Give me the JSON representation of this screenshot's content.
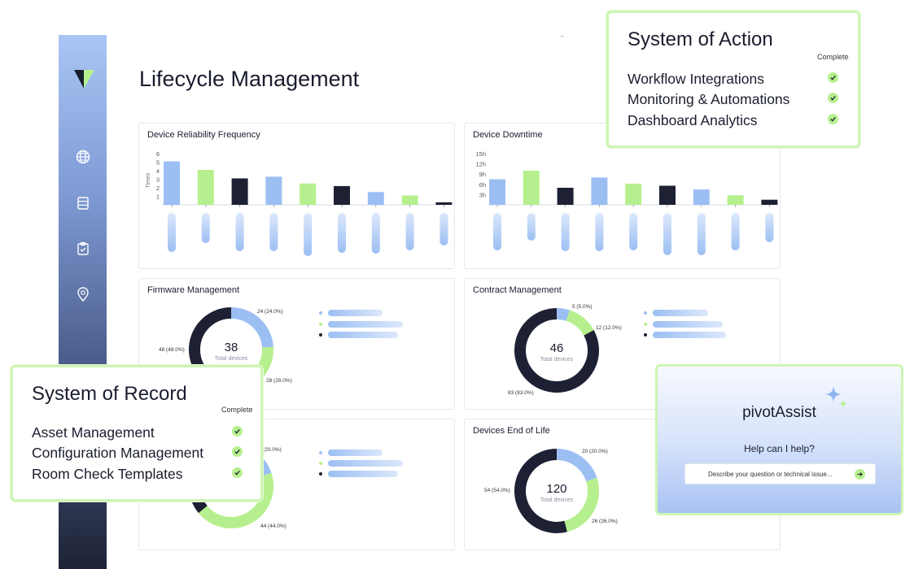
{
  "page": {
    "title": "Lifecycle Management",
    "dots": ".."
  },
  "sidebar": {
    "icons": [
      "logo-icon",
      "globe-icon",
      "database-icon",
      "clipboard-icon",
      "location-pin-icon"
    ]
  },
  "colors": {
    "blue": "#9cbff3",
    "green": "#b6f08e",
    "navy": "#1e2133"
  },
  "cards": {
    "reliability": {
      "title": "Device Reliability Frequency",
      "chart_data": {
        "type": "bar",
        "ylabel": "Times",
        "yticks": [
          "1",
          "2",
          "3",
          "4",
          "5",
          "6"
        ],
        "ylim": [
          0,
          6
        ],
        "values": [
          5.1,
          4.1,
          3.1,
          3.3,
          2.5,
          2.2,
          1.5,
          1.1,
          0.3
        ],
        "colors": [
          "blue",
          "green",
          "navy",
          "blue",
          "green",
          "navy",
          "blue",
          "green",
          "navy"
        ]
      }
    },
    "downtime": {
      "title": "Device Downtime",
      "chart_data": {
        "type": "bar",
        "yticks": [
          "3h",
          "6h",
          "9h",
          "12h",
          "15h"
        ],
        "ylim": [
          0,
          15
        ],
        "values": [
          7.5,
          10,
          5,
          8,
          6.2,
          5.6,
          4.5,
          2.8,
          1.5
        ],
        "colors": [
          "blue",
          "green",
          "navy",
          "blue",
          "green",
          "navy",
          "blue",
          "green",
          "navy"
        ]
      }
    },
    "firmware": {
      "title": "Firmware Management",
      "total": "38",
      "total_label": "Total devices",
      "segments": [
        {
          "label": "24 (24.0%)",
          "value": 24,
          "color": "blue"
        },
        {
          "label": "28 (28.0%)",
          "value": 28,
          "color": "green"
        },
        {
          "label": "48 (48.0%)",
          "value": 48,
          "color": "navy"
        }
      ]
    },
    "contract": {
      "title": "Contract Management",
      "total": "46",
      "total_label": "Total devices",
      "segments": [
        {
          "label": "5 (5.0%)",
          "value": 5,
          "color": "blue"
        },
        {
          "label": "12 (12.0%)",
          "value": 12,
          "color": "green"
        },
        {
          "label": "83 (83.0%)",
          "value": 83,
          "color": "navy"
        }
      ]
    },
    "partial": {
      "segments": [
        {
          "label": "(20.0%)",
          "value": 20,
          "color": "blue"
        },
        {
          "label": "44 (44.0%)",
          "value": 44,
          "color": "green"
        },
        {
          "label": "",
          "value": 36,
          "color": "navy"
        }
      ]
    },
    "end_of_life": {
      "title": "Devices End of Life",
      "total": "120",
      "total_label": "Total devices",
      "segments": [
        {
          "label": "20 (20.0%)",
          "value": 20,
          "color": "blue"
        },
        {
          "label": "26 (26.0%)",
          "value": 26,
          "color": "green"
        },
        {
          "label": "54 (54.0%)",
          "value": 54,
          "color": "navy"
        }
      ]
    }
  },
  "system_of_action": {
    "title": "System of Action",
    "complete_label": "Complete",
    "items": [
      "Workflow Integrations",
      "Monitoring & Automations",
      "Dashboard Analytics"
    ]
  },
  "system_of_record": {
    "title": "System of Record",
    "complete_label": "Complete",
    "items": [
      "Asset Management",
      "Configuration Management",
      "Room Check Templates"
    ]
  },
  "assist": {
    "brand_part1": "pivot",
    "brand_part2": "Assist",
    "help_text": "Help can I help?",
    "input_placeholder": "Describe your question or technical issue...",
    "send_icon": "arrow-right-icon",
    "sparkle_icon": "sparkle-icon"
  }
}
